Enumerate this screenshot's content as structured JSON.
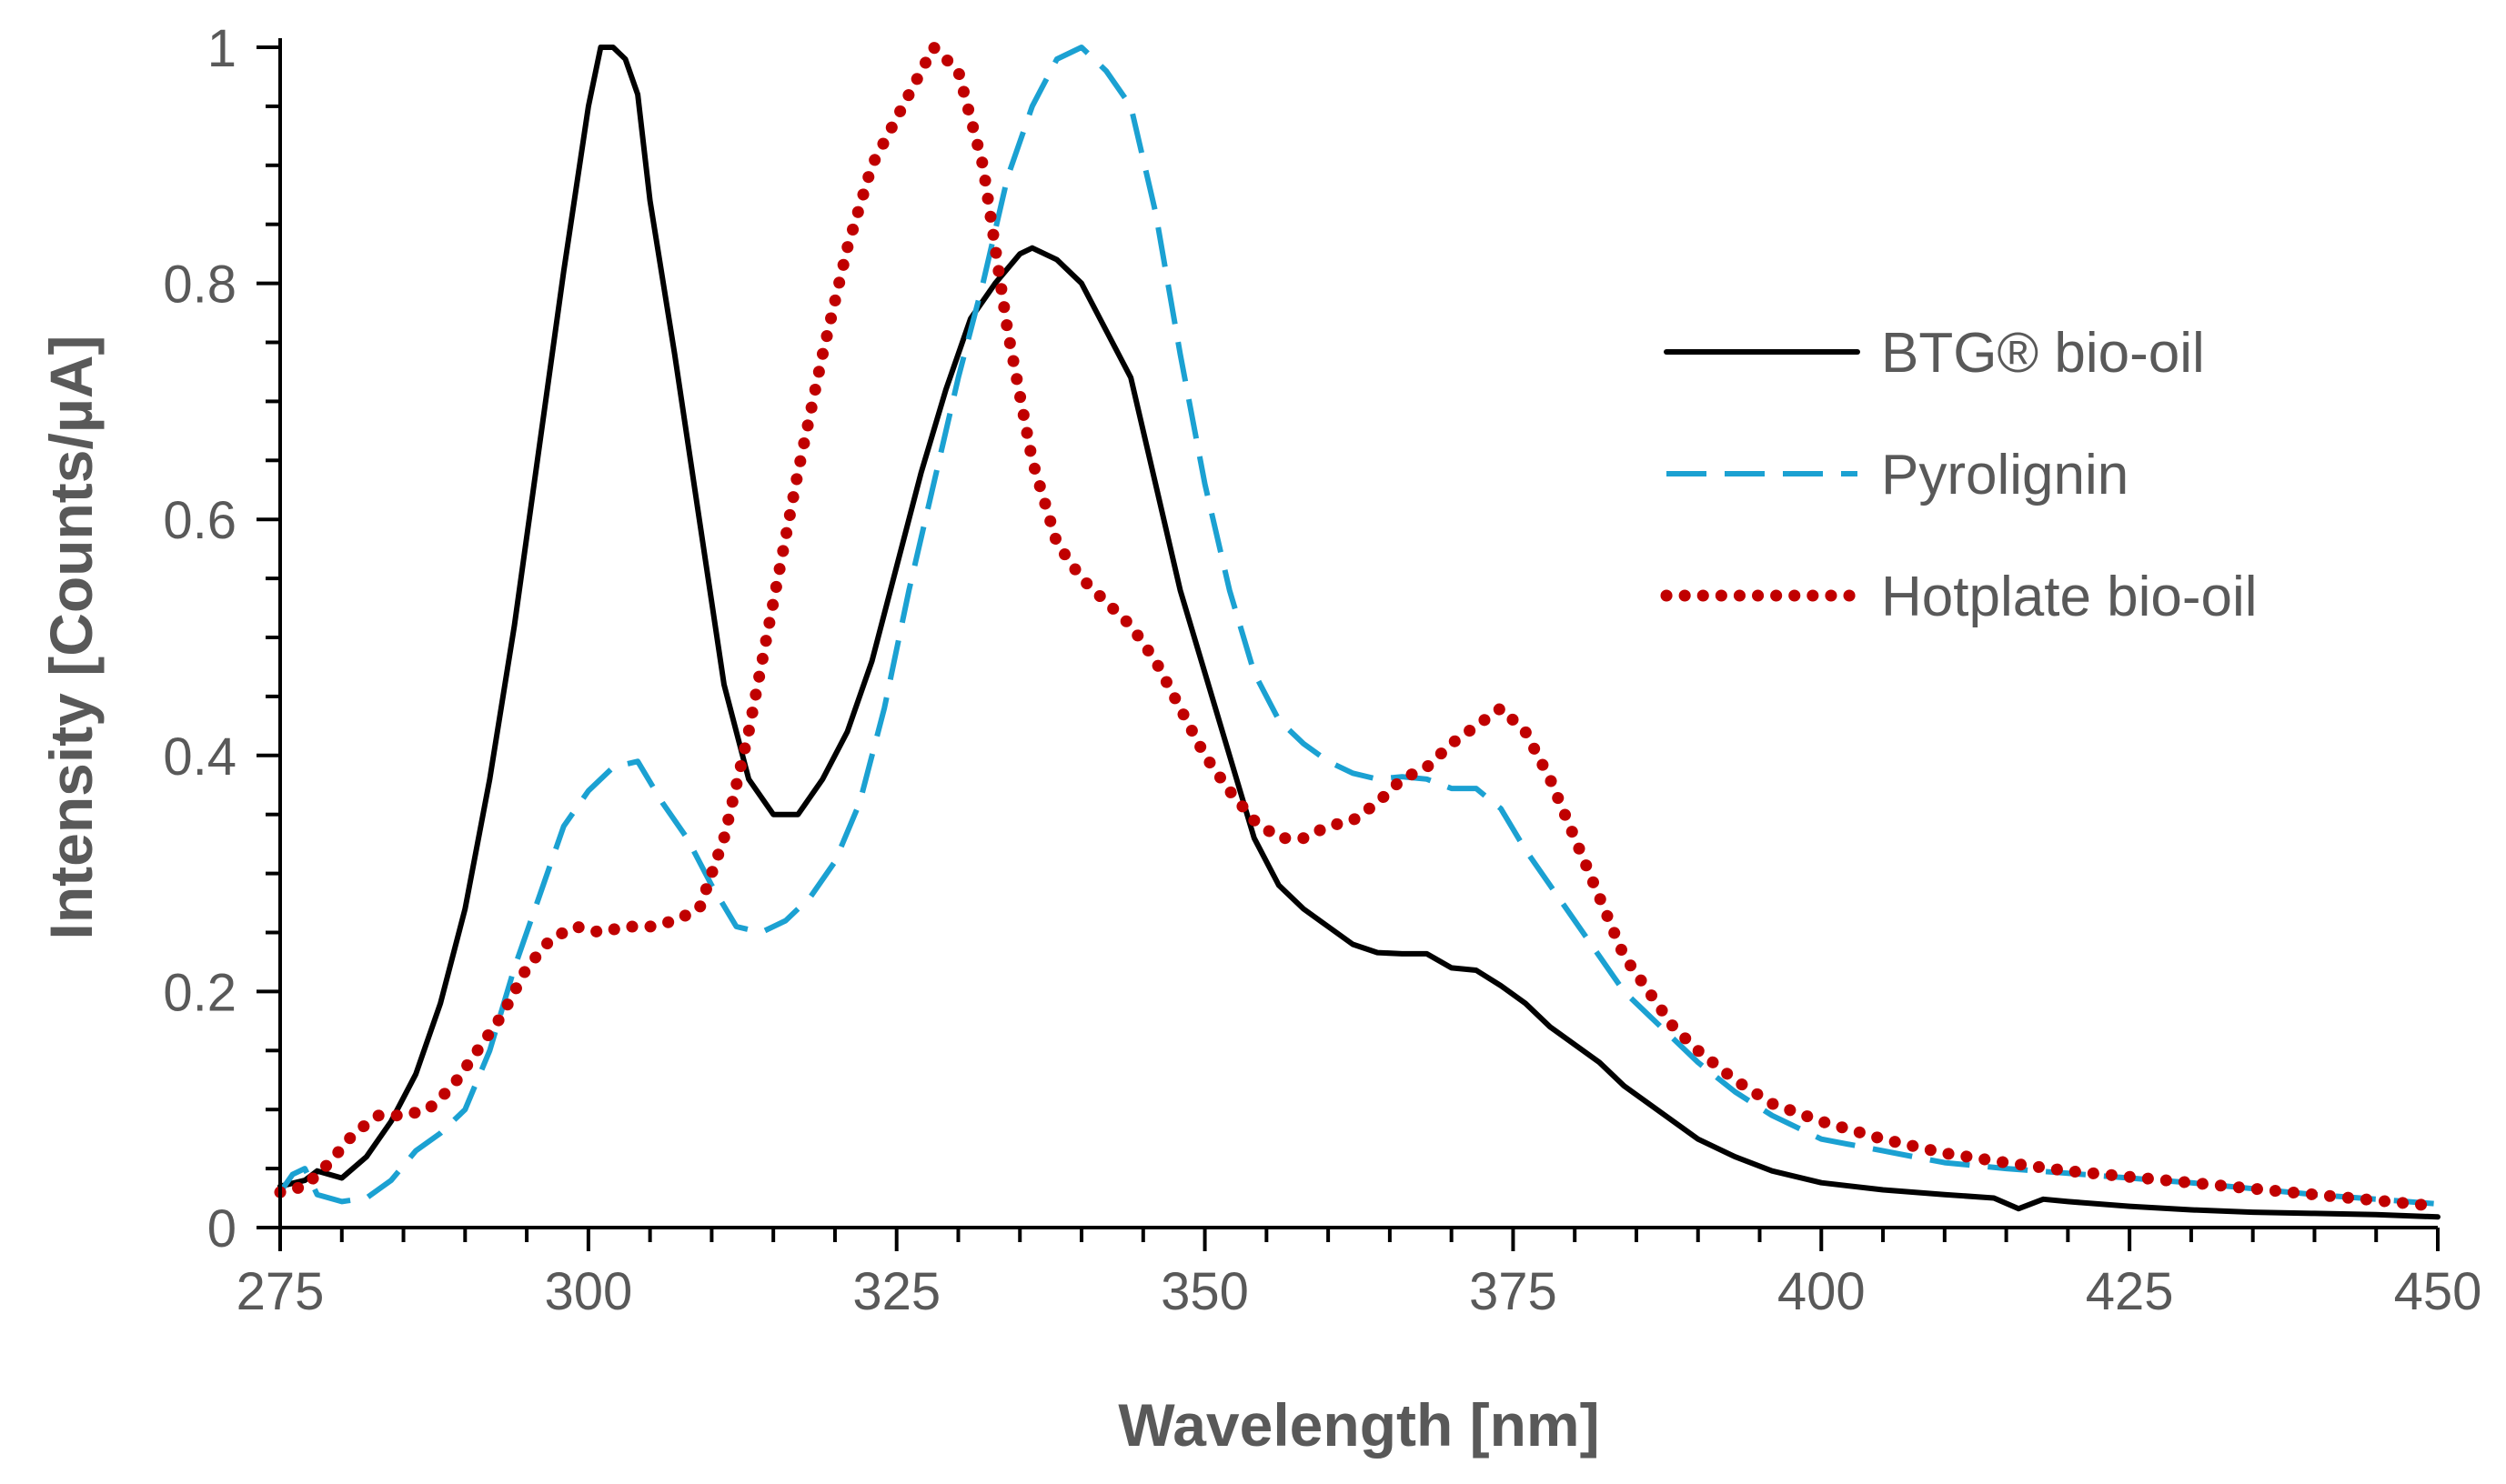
{
  "chart_data": {
    "type": "line",
    "title": "",
    "xlabel": "Wavelength [nm]",
    "ylabel": "Intensity [Counts/µA]",
    "xlim": [
      275,
      450
    ],
    "ylim": [
      0,
      1
    ],
    "x_major_ticks": [
      275,
      300,
      325,
      350,
      375,
      400,
      425,
      450
    ],
    "x_tick_labels": [
      "275",
      "300",
      "325",
      "350",
      "375",
      "400",
      "425",
      "450"
    ],
    "x_minor_step": 5,
    "y_major_ticks": [
      0,
      0.2,
      0.4,
      0.6,
      0.8,
      1
    ],
    "y_tick_labels": [
      "0",
      "0.2",
      "0.4",
      "0.6",
      "0.8",
      "1"
    ],
    "y_minor_step": 0.05,
    "grid": false,
    "legend_position": "right",
    "series": [
      {
        "name": "BTG® bio-oil",
        "color": "#000000",
        "style": "solid",
        "points": [
          [
            275,
            0.035
          ],
          [
            277,
            0.04
          ],
          [
            278,
            0.048
          ],
          [
            280,
            0.042
          ],
          [
            282,
            0.06
          ],
          [
            284,
            0.09
          ],
          [
            286,
            0.13
          ],
          [
            288,
            0.19
          ],
          [
            290,
            0.27
          ],
          [
            292,
            0.38
          ],
          [
            294,
            0.51
          ],
          [
            296,
            0.66
          ],
          [
            298,
            0.81
          ],
          [
            300,
            0.95
          ],
          [
            301,
            1.0
          ],
          [
            302,
            1.0
          ],
          [
            303,
            0.99
          ],
          [
            304,
            0.96
          ],
          [
            305,
            0.87
          ],
          [
            307,
            0.74
          ],
          [
            309,
            0.6
          ],
          [
            311,
            0.46
          ],
          [
            313,
            0.38
          ],
          [
            315,
            0.35
          ],
          [
            317,
            0.35
          ],
          [
            319,
            0.38
          ],
          [
            321,
            0.42
          ],
          [
            323,
            0.48
          ],
          [
            325,
            0.56
          ],
          [
            327,
            0.64
          ],
          [
            329,
            0.71
          ],
          [
            331,
            0.77
          ],
          [
            333,
            0.8
          ],
          [
            335,
            0.825
          ],
          [
            336,
            0.83
          ],
          [
            338,
            0.82
          ],
          [
            340,
            0.8
          ],
          [
            342,
            0.76
          ],
          [
            344,
            0.72
          ],
          [
            346,
            0.63
          ],
          [
            348,
            0.54
          ],
          [
            350,
            0.47
          ],
          [
            352,
            0.4
          ],
          [
            354,
            0.33
          ],
          [
            356,
            0.29
          ],
          [
            358,
            0.27
          ],
          [
            360,
            0.255
          ],
          [
            362,
            0.24
          ],
          [
            364,
            0.233
          ],
          [
            366,
            0.232
          ],
          [
            368,
            0.232
          ],
          [
            370,
            0.22
          ],
          [
            372,
            0.218
          ],
          [
            374,
            0.205
          ],
          [
            376,
            0.19
          ],
          [
            378,
            0.17
          ],
          [
            380,
            0.155
          ],
          [
            382,
            0.14
          ],
          [
            384,
            0.12
          ],
          [
            386,
            0.105
          ],
          [
            388,
            0.09
          ],
          [
            390,
            0.075
          ],
          [
            393,
            0.06
          ],
          [
            396,
            0.048
          ],
          [
            400,
            0.038
          ],
          [
            405,
            0.032
          ],
          [
            410,
            0.028
          ],
          [
            414,
            0.025
          ],
          [
            416,
            0.016
          ],
          [
            418,
            0.024
          ],
          [
            420,
            0.022
          ],
          [
            425,
            0.018
          ],
          [
            430,
            0.015
          ],
          [
            435,
            0.013
          ],
          [
            440,
            0.012
          ],
          [
            445,
            0.011
          ],
          [
            450,
            0.009
          ]
        ]
      },
      {
        "name": "Pyrolignin",
        "color": "#1ba1d2",
        "style": "dashed",
        "points": [
          [
            275,
            0.03
          ],
          [
            276,
            0.045
          ],
          [
            277,
            0.05
          ],
          [
            278,
            0.028
          ],
          [
            280,
            0.022
          ],
          [
            282,
            0.025
          ],
          [
            284,
            0.04
          ],
          [
            286,
            0.065
          ],
          [
            288,
            0.08
          ],
          [
            290,
            0.1
          ],
          [
            292,
            0.15
          ],
          [
            294,
            0.22
          ],
          [
            296,
            0.28
          ],
          [
            298,
            0.34
          ],
          [
            300,
            0.37
          ],
          [
            302,
            0.39
          ],
          [
            304,
            0.395
          ],
          [
            306,
            0.36
          ],
          [
            308,
            0.33
          ],
          [
            310,
            0.29
          ],
          [
            312,
            0.255
          ],
          [
            314,
            0.25
          ],
          [
            316,
            0.26
          ],
          [
            318,
            0.28
          ],
          [
            320,
            0.31
          ],
          [
            322,
            0.36
          ],
          [
            324,
            0.44
          ],
          [
            326,
            0.54
          ],
          [
            328,
            0.63
          ],
          [
            330,
            0.72
          ],
          [
            332,
            0.8
          ],
          [
            334,
            0.89
          ],
          [
            336,
            0.95
          ],
          [
            338,
            0.99
          ],
          [
            340,
            1.0
          ],
          [
            342,
            0.98
          ],
          [
            344,
            0.95
          ],
          [
            346,
            0.86
          ],
          [
            348,
            0.74
          ],
          [
            350,
            0.63
          ],
          [
            352,
            0.54
          ],
          [
            354,
            0.47
          ],
          [
            356,
            0.43
          ],
          [
            358,
            0.41
          ],
          [
            360,
            0.395
          ],
          [
            362,
            0.385
          ],
          [
            364,
            0.38
          ],
          [
            366,
            0.382
          ],
          [
            368,
            0.38
          ],
          [
            370,
            0.372
          ],
          [
            372,
            0.372
          ],
          [
            374,
            0.355
          ],
          [
            376,
            0.32
          ],
          [
            378,
            0.29
          ],
          [
            380,
            0.26
          ],
          [
            382,
            0.23
          ],
          [
            384,
            0.2
          ],
          [
            386,
            0.18
          ],
          [
            388,
            0.16
          ],
          [
            390,
            0.14
          ],
          [
            393,
            0.115
          ],
          [
            396,
            0.095
          ],
          [
            400,
            0.075
          ],
          [
            405,
            0.065
          ],
          [
            410,
            0.055
          ],
          [
            415,
            0.05
          ],
          [
            420,
            0.046
          ],
          [
            425,
            0.042
          ],
          [
            430,
            0.038
          ],
          [
            435,
            0.033
          ],
          [
            440,
            0.028
          ],
          [
            445,
            0.024
          ],
          [
            450,
            0.02
          ]
        ]
      },
      {
        "name": "Hotplate bio-oil",
        "color": "#c00000",
        "style": "dotted",
        "points": [
          [
            275,
            0.03
          ],
          [
            277,
            0.035
          ],
          [
            279,
            0.055
          ],
          [
            281,
            0.08
          ],
          [
            283,
            0.095
          ],
          [
            285,
            0.095
          ],
          [
            287,
            0.1
          ],
          [
            289,
            0.12
          ],
          [
            291,
            0.15
          ],
          [
            293,
            0.18
          ],
          [
            295,
            0.22
          ],
          [
            297,
            0.245
          ],
          [
            299,
            0.255
          ],
          [
            301,
            0.25
          ],
          [
            303,
            0.255
          ],
          [
            305,
            0.255
          ],
          [
            307,
            0.26
          ],
          [
            309,
            0.27
          ],
          [
            311,
            0.33
          ],
          [
            313,
            0.42
          ],
          [
            315,
            0.53
          ],
          [
            317,
            0.64
          ],
          [
            319,
            0.74
          ],
          [
            321,
            0.83
          ],
          [
            323,
            0.9
          ],
          [
            325,
            0.94
          ],
          [
            327,
            0.98
          ],
          [
            328,
            1.0
          ],
          [
            330,
            0.98
          ],
          [
            332,
            0.9
          ],
          [
            334,
            0.76
          ],
          [
            336,
            0.65
          ],
          [
            338,
            0.58
          ],
          [
            340,
            0.55
          ],
          [
            342,
            0.53
          ],
          [
            344,
            0.51
          ],
          [
            346,
            0.48
          ],
          [
            348,
            0.44
          ],
          [
            350,
            0.4
          ],
          [
            352,
            0.37
          ],
          [
            354,
            0.345
          ],
          [
            356,
            0.33
          ],
          [
            358,
            0.33
          ],
          [
            360,
            0.34
          ],
          [
            362,
            0.345
          ],
          [
            364,
            0.36
          ],
          [
            366,
            0.38
          ],
          [
            368,
            0.39
          ],
          [
            370,
            0.41
          ],
          [
            372,
            0.425
          ],
          [
            374,
            0.44
          ],
          [
            376,
            0.42
          ],
          [
            378,
            0.38
          ],
          [
            380,
            0.33
          ],
          [
            382,
            0.28
          ],
          [
            384,
            0.23
          ],
          [
            386,
            0.2
          ],
          [
            388,
            0.17
          ],
          [
            390,
            0.15
          ],
          [
            393,
            0.125
          ],
          [
            396,
            0.105
          ],
          [
            400,
            0.09
          ],
          [
            405,
            0.075
          ],
          [
            410,
            0.063
          ],
          [
            415,
            0.055
          ],
          [
            420,
            0.048
          ],
          [
            425,
            0.043
          ],
          [
            430,
            0.038
          ],
          [
            435,
            0.033
          ],
          [
            440,
            0.028
          ],
          [
            445,
            0.023
          ],
          [
            450,
            0.018
          ]
        ]
      }
    ]
  }
}
